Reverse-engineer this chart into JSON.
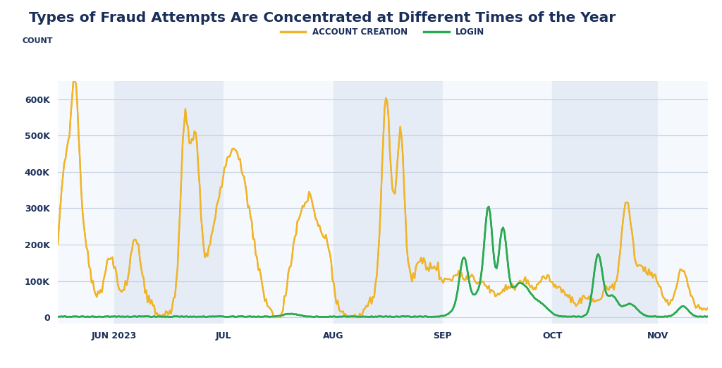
{
  "title": "Types of Fraud Attempts Are Concentrated at Different Times of the Year",
  "ylabel": "COUNT",
  "background_color": "#ffffff",
  "plot_bg_color": "#eef2f8",
  "grid_color": "#c5d0e0",
  "title_color": "#1a2e5a",
  "axis_label_color": "#1a2e5a",
  "tick_label_color": "#1a2e5a",
  "line1_color": "#f0b429",
  "line2_color": "#2aaa50",
  "line1_label": "ACCOUNT CREATION",
  "line2_label": "LOGIN",
  "yticks": [
    0,
    100000,
    200000,
    300000,
    400000,
    500000,
    600000
  ],
  "ytick_labels": [
    "0",
    "100K",
    "200K",
    "300K",
    "400K",
    "500K",
    "600K"
  ],
  "ylim": [
    -18000,
    650000
  ],
  "x_month_labels": [
    "JUN 2023",
    "JUL",
    "AUG",
    "SEP",
    "OCT",
    "NOV"
  ],
  "n_points": 500,
  "total_days": 184
}
